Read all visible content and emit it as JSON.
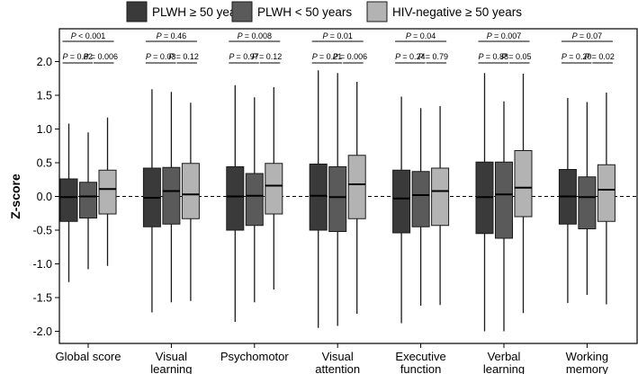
{
  "chart_data": {
    "type": "boxplot",
    "ylabel": "Z-score",
    "ylim": [
      -2.2,
      2.2
    ],
    "yticks": [
      -2.0,
      -1.5,
      -1.0,
      -0.5,
      0.0,
      0.5,
      1.0,
      1.5,
      2.0
    ],
    "ytick_labels": [
      "-2.0",
      "-1.5",
      "-1.0",
      "-0.5",
      "0.0",
      "0.5",
      "1.0",
      "1.5",
      "2.0"
    ],
    "reference_line": 0.0,
    "grid": false,
    "legend_position": "top",
    "series": [
      {
        "name": "PLWH ≥ 50 years",
        "color": "#3a3a3a"
      },
      {
        "name": "PLWH < 50 years",
        "color": "#5a5a5a"
      },
      {
        "name": "HIV-negative ≥ 50 years",
        "color": "#b3b3b3"
      }
    ],
    "categories": [
      {
        "label": [
          "Global score"
        ],
        "boxes": [
          {
            "min": -1.27,
            "q1": -0.37,
            "median": -0.01,
            "q3": 0.26,
            "max": 1.08
          },
          {
            "min": -1.08,
            "q1": -0.32,
            "median": 0.0,
            "q3": 0.21,
            "max": 0.95
          },
          {
            "min": -1.03,
            "q1": -0.26,
            "median": 0.11,
            "q3": 0.39,
            "max": 1.17
          }
        ],
        "p_top": "= 0.001",
        "p_top_sep": "<",
        "p_left": "0.82",
        "p_right": "0.006"
      },
      {
        "label": [
          "Visual",
          "learning"
        ],
        "boxes": [
          {
            "min": -1.72,
            "q1": -0.45,
            "median": -0.02,
            "q3": 0.42,
            "max": 1.59
          },
          {
            "min": -1.57,
            "q1": -0.41,
            "median": 0.08,
            "q3": 0.43,
            "max": 1.55
          },
          {
            "min": -1.55,
            "q1": -0.33,
            "median": 0.03,
            "q3": 0.49,
            "max": 1.39
          }
        ],
        "p_top": "0.46",
        "p_left": "0.03",
        "p_right": "0.12"
      },
      {
        "label": [
          "Psychomotor"
        ],
        "boxes": [
          {
            "min": -1.86,
            "q1": -0.5,
            "median": 0.0,
            "q3": 0.44,
            "max": 1.65
          },
          {
            "min": -1.57,
            "q1": -0.43,
            "median": 0.01,
            "q3": 0.34,
            "max": 1.47
          },
          {
            "min": -1.38,
            "q1": -0.26,
            "median": 0.16,
            "q3": 0.49,
            "max": 1.62
          }
        ],
        "p_top": "0.008",
        "p_left": "0.97",
        "p_right": "0.12"
      },
      {
        "label": [
          "Visual",
          "attention"
        ],
        "boxes": [
          {
            "min": -1.95,
            "q1": -0.5,
            "median": 0.01,
            "q3": 0.48,
            "max": 1.87
          },
          {
            "min": -1.92,
            "q1": -0.52,
            "median": -0.01,
            "q3": 0.44,
            "max": 1.83
          },
          {
            "min": -1.74,
            "q1": -0.33,
            "median": 0.18,
            "q3": 0.61,
            "max": 1.7
          }
        ],
        "p_top": "0.01",
        "p_left": "0.21",
        "p_right": "0.006"
      },
      {
        "label": [
          "Executive",
          "function"
        ],
        "boxes": [
          {
            "min": -1.88,
            "q1": -0.54,
            "median": -0.03,
            "q3": 0.39,
            "max": 1.48
          },
          {
            "min": -1.62,
            "q1": -0.45,
            "median": 0.02,
            "q3": 0.37,
            "max": 1.31
          },
          {
            "min": -1.61,
            "q1": -0.43,
            "median": 0.08,
            "q3": 0.42,
            "max": 1.34
          }
        ],
        "p_top": "0.04",
        "p_left": "0.24",
        "p_right": "0.79"
      },
      {
        "label": [
          "Verbal",
          "learning"
        ],
        "boxes": [
          {
            "min": -2.0,
            "q1": -0.55,
            "median": -0.01,
            "q3": 0.51,
            "max": 1.83
          },
          {
            "min": -2.0,
            "q1": -0.62,
            "median": 0.03,
            "q3": 0.51,
            "max": 1.41
          },
          {
            "min": -1.73,
            "q1": -0.3,
            "median": 0.13,
            "q3": 0.68,
            "max": 1.82
          }
        ],
        "p_top": "0.007",
        "p_left": "0.88",
        "p_right": "0.05"
      },
      {
        "label": [
          "Working",
          "memory"
        ],
        "boxes": [
          {
            "min": -1.58,
            "q1": -0.41,
            "median": 0.0,
            "q3": 0.4,
            "max": 1.46
          },
          {
            "min": -1.46,
            "q1": -0.48,
            "median": -0.01,
            "q3": 0.29,
            "max": 1.4
          },
          {
            "min": -1.6,
            "q1": -0.37,
            "median": 0.1,
            "q3": 0.47,
            "max": 1.54
          }
        ],
        "p_top": "0.07",
        "p_left": "0.20",
        "p_right": "0.02"
      }
    ],
    "p_prefix": "P",
    "p_sep": "="
  }
}
